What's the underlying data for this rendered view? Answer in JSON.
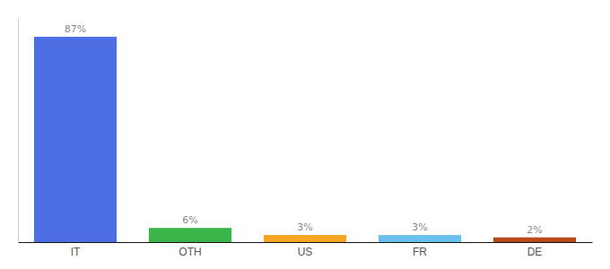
{
  "chart_data": {
    "type": "bar",
    "categories": [
      "IT",
      "OTH",
      "US",
      "FR",
      "DE"
    ],
    "values": [
      87,
      6,
      3,
      3,
      2
    ],
    "value_labels": [
      "87%",
      "6%",
      "3%",
      "3%",
      "2%"
    ],
    "data_labels": true,
    "colors": [
      "#4d6de3",
      "#3bb54a",
      "#f5a623",
      "#6bbfed",
      "#b84a1e"
    ],
    "ylim": [
      0,
      95
    ],
    "tick_labels": "x",
    "grid": false
  }
}
